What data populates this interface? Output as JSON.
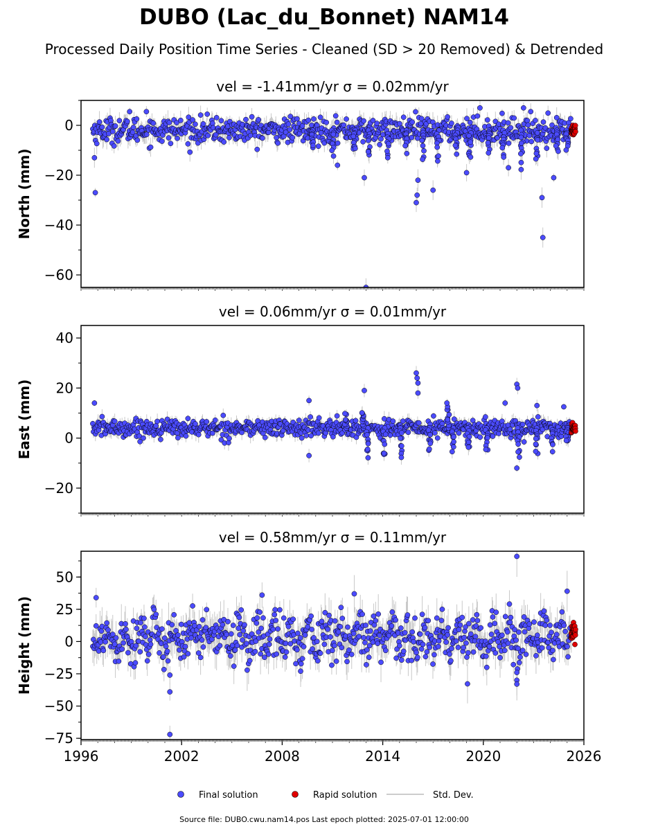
{
  "title": "DUBO (Lac_du_Bonnet) NAM14",
  "subtitle": "Processed Daily Position Time Series - Cleaned (SD > 20 Removed) & Detrended",
  "footer": "Source file: DUBO.cwu.nam14.pos  Last epoch plotted: 2025-07-01 12:00:00",
  "colors": {
    "final": "#4b4bff",
    "rapid": "#e00000",
    "stddev": "#bbbbbb",
    "marker_edge": "#000000"
  },
  "legend": {
    "placement": "bottom-center",
    "final_label": "Final solution",
    "rapid_label": "Rapid solution",
    "stddev_label": "Std. Dev."
  },
  "chart_data": [
    {
      "type": "scatter",
      "panel": "north",
      "title": "vel = -1.41mm/yr   σ = 0.02mm/yr",
      "ylabel": "North (mm)",
      "xlim": [
        1996,
        2026
      ],
      "ylim": [
        -65,
        10
      ],
      "yticks": [
        "0",
        "−20",
        "−40",
        "−60"
      ],
      "ytick_values": [
        0,
        -20,
        -40,
        -60
      ],
      "x_start": 1996.7,
      "x_end": 2025.5,
      "rapid_start": 2025.25,
      "baseline": -2,
      "scatter": 2.5,
      "outliers": [
        [
          1996.8,
          -13
        ],
        [
          1996.85,
          -27
        ],
        [
          2013.0,
          -65
        ],
        [
          2016.0,
          -31
        ],
        [
          2016.05,
          -28
        ],
        [
          2016.1,
          -22
        ],
        [
          2017.0,
          -26
        ],
        [
          2023.5,
          -29
        ],
        [
          2023.55,
          -45
        ],
        [
          2012.9,
          -21
        ],
        [
          2011.3,
          -16
        ],
        [
          2019.0,
          -19
        ],
        [
          2021.5,
          -17
        ],
        [
          2024.2,
          -21
        ],
        [
          1998.9,
          5.5
        ],
        [
          1999.9,
          5.5
        ],
        [
          2019.8,
          7
        ],
        [
          2022.4,
          7
        ]
      ],
      "spikes": [
        [
          2009.8,
          -10
        ],
        [
          2011.0,
          -14
        ],
        [
          2012.3,
          -12
        ],
        [
          2013.2,
          -16
        ],
        [
          2014.3,
          -15
        ],
        [
          2015.4,
          -12
        ],
        [
          2016.4,
          -14
        ],
        [
          2017.3,
          -16
        ],
        [
          2018.4,
          -12
        ],
        [
          2019.2,
          -16
        ],
        [
          2020.3,
          -12
        ],
        [
          2021.2,
          -16
        ],
        [
          2022.3,
          -19
        ],
        [
          2023.2,
          -16
        ],
        [
          2024.4,
          -12
        ],
        [
          2025.0,
          -12
        ]
      ]
    },
    {
      "type": "scatter",
      "panel": "east",
      "title": "vel = 0.06mm/yr   σ = 0.01mm/yr",
      "ylabel": "East (mm)",
      "xlim": [
        1996,
        2026
      ],
      "ylim": [
        -30,
        45
      ],
      "yticks": [
        "40",
        "20",
        "0",
        "−20"
      ],
      "ytick_values": [
        40,
        20,
        0,
        -20
      ],
      "x_start": 1996.7,
      "x_end": 2025.5,
      "rapid_start": 2025.25,
      "baseline": 4,
      "scatter": 1.8,
      "outliers": [
        [
          1996.8,
          14
        ],
        [
          2009.6,
          15
        ],
        [
          2012.9,
          19
        ],
        [
          2016.0,
          26
        ],
        [
          2016.05,
          24
        ],
        [
          2016.1,
          22
        ],
        [
          2016.1,
          18
        ],
        [
          2022.0,
          21.5
        ],
        [
          2022.05,
          20
        ],
        [
          2022.0,
          -12
        ],
        [
          2024.8,
          12.5
        ],
        [
          2009.6,
          -7
        ],
        [
          2021.3,
          14
        ],
        [
          2023.2,
          13
        ]
      ],
      "spikes": [
        [
          2011.8,
          11
        ],
        [
          2012.8,
          12
        ],
        [
          2013.1,
          -10
        ],
        [
          2014.1,
          -12
        ],
        [
          2015.1,
          -9
        ],
        [
          2016.8,
          -8
        ],
        [
          2017.9,
          16
        ],
        [
          2018.2,
          -6
        ],
        [
          2019.1,
          -8
        ],
        [
          2020.2,
          -7
        ],
        [
          2022.1,
          -11
        ],
        [
          2023.2,
          -8
        ],
        [
          2024.1,
          -7
        ],
        [
          2025.0,
          -4
        ]
      ]
    },
    {
      "type": "scatter",
      "panel": "height",
      "title": "vel = 0.58mm/yr   σ = 0.11mm/yr",
      "ylabel": "Height (mm)",
      "xlim": [
        1996,
        2026
      ],
      "ylim": [
        -76,
        70
      ],
      "yticks": [
        "50",
        "25",
        "0",
        "−25",
        "−50",
        "−75"
      ],
      "ytick_values": [
        50,
        25,
        0,
        -25,
        -50,
        -75
      ],
      "xticks": [
        "1996",
        "2002",
        "2008",
        "2014",
        "2020",
        "2026"
      ],
      "xtick_values": [
        1996,
        2002,
        2008,
        2014,
        2020,
        2026
      ],
      "x_start": 1996.7,
      "x_end": 2025.5,
      "rapid_start": 2025.25,
      "baseline": 3,
      "scatter": 9,
      "seasonal": 6,
      "outliers": [
        [
          2001.3,
          -39
        ],
        [
          2001.3,
          -72
        ],
        [
          2001.3,
          -26
        ],
        [
          2022.0,
          66
        ],
        [
          2022.0,
          -24
        ],
        [
          2022.0,
          -30
        ],
        [
          2022.0,
          -33
        ],
        [
          1996.9,
          34
        ],
        [
          2006.8,
          36
        ],
        [
          2012.3,
          37
        ],
        [
          2025.0,
          39
        ],
        [
          2009.1,
          -23
        ]
      ],
      "spikes": []
    }
  ]
}
